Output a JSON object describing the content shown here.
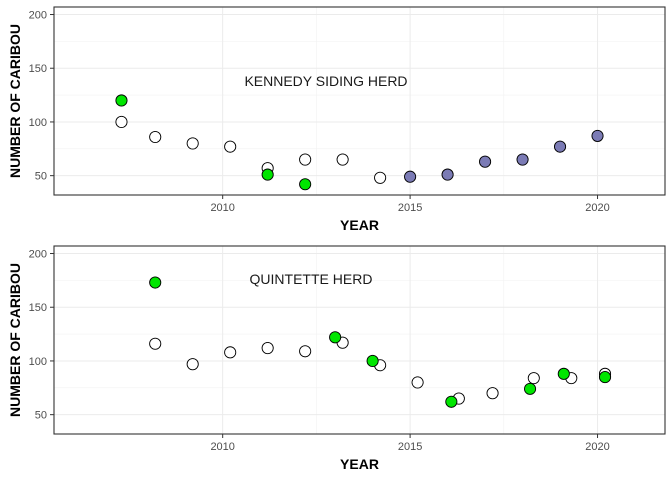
{
  "chart_data": [
    {
      "type": "scatter",
      "annotation": "KENNEDY SIDING HERD",
      "xlabel": "YEAR",
      "ylabel": "NUMBER OF CARIBOU",
      "xlim": [
        2005.5,
        2021.8
      ],
      "ylim": [
        32,
        207
      ],
      "xticks": [
        2010,
        2015,
        2020
      ],
      "yticks": [
        50,
        100,
        150,
        200
      ],
      "grid": true,
      "series": [
        {
          "color": "#ffffff",
          "points": [
            {
              "x": 2007.3,
              "y": 100
            },
            {
              "x": 2008.2,
              "y": 86
            },
            {
              "x": 2009.2,
              "y": 80
            },
            {
              "x": 2010.2,
              "y": 77
            },
            {
              "x": 2011.2,
              "y": 57
            },
            {
              "x": 2012.2,
              "y": 65
            },
            {
              "x": 2013.2,
              "y": 65
            },
            {
              "x": 2014.2,
              "y": 48
            }
          ]
        },
        {
          "color": "#00e600",
          "points": [
            {
              "x": 2007.3,
              "y": 120
            },
            {
              "x": 2011.2,
              "y": 51
            },
            {
              "x": 2012.2,
              "y": 42
            }
          ]
        },
        {
          "color": "#7b7bb5",
          "points": [
            {
              "x": 2015.0,
              "y": 49
            },
            {
              "x": 2016.0,
              "y": 51
            },
            {
              "x": 2017.0,
              "y": 63
            },
            {
              "x": 2018.0,
              "y": 65
            },
            {
              "x": 2019.0,
              "y": 77
            },
            {
              "x": 2020.0,
              "y": 87
            }
          ]
        }
      ]
    },
    {
      "type": "scatter",
      "annotation": "QUINTETTE HERD",
      "xlabel": "YEAR",
      "ylabel": "NUMBER OF CARIBOU",
      "xlim": [
        2005.5,
        2021.8
      ],
      "ylim": [
        32,
        207
      ],
      "xticks": [
        2010,
        2015,
        2020
      ],
      "yticks": [
        50,
        100,
        150,
        200
      ],
      "grid": true,
      "series": [
        {
          "color": "#ffffff",
          "points": [
            {
              "x": 2008.2,
              "y": 116
            },
            {
              "x": 2009.2,
              "y": 97
            },
            {
              "x": 2010.2,
              "y": 108
            },
            {
              "x": 2011.2,
              "y": 112
            },
            {
              "x": 2012.2,
              "y": 109
            },
            {
              "x": 2013.2,
              "y": 117
            },
            {
              "x": 2014.2,
              "y": 96
            },
            {
              "x": 2015.2,
              "y": 80
            },
            {
              "x": 2016.3,
              "y": 65
            },
            {
              "x": 2017.2,
              "y": 70
            },
            {
              "x": 2018.3,
              "y": 84
            },
            {
              "x": 2019.3,
              "y": 84
            },
            {
              "x": 2020.2,
              "y": 88
            }
          ]
        },
        {
          "color": "#00e600",
          "points": [
            {
              "x": 2008.2,
              "y": 173
            },
            {
              "x": 2013.0,
              "y": 122
            },
            {
              "x": 2014.0,
              "y": 100
            },
            {
              "x": 2016.1,
              "y": 62
            },
            {
              "x": 2018.2,
              "y": 74
            },
            {
              "x": 2019.1,
              "y": 88
            },
            {
              "x": 2020.2,
              "y": 85
            }
          ]
        }
      ]
    }
  ]
}
